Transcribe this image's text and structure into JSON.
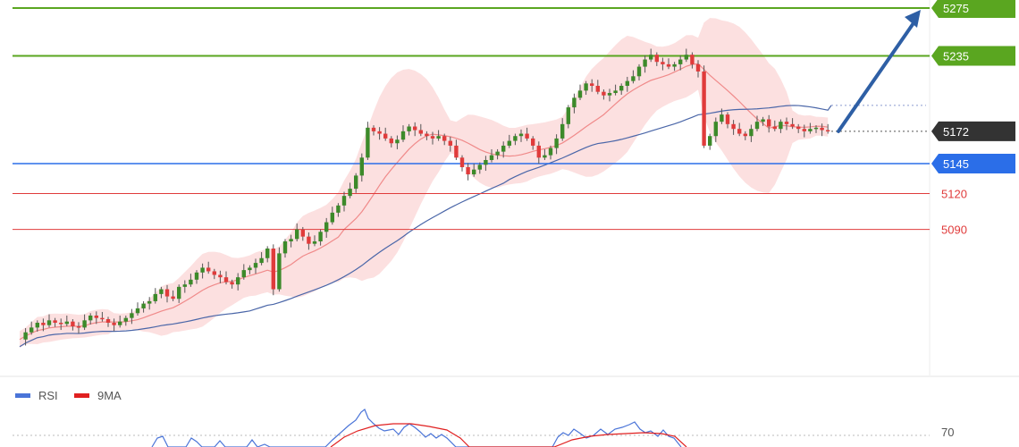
{
  "chart_data": {
    "type": "candlestick",
    "levels": [
      {
        "value": 5275,
        "label": "5275",
        "color": "#5aa620",
        "style": "resistance",
        "tag": "filled"
      },
      {
        "value": 5235,
        "label": "5235",
        "color": "#5aa620",
        "style": "resistance",
        "tag": "filled"
      },
      {
        "value": 5172,
        "label": "5172",
        "color": "#333333",
        "style": "current-price",
        "tag": "filled"
      },
      {
        "value": 5145,
        "label": "5145",
        "color": "#2b6ee8",
        "style": "support",
        "tag": "filled"
      },
      {
        "value": 5120,
        "label": "5120",
        "color": "#e03b3b",
        "style": "support",
        "tag": "text"
      },
      {
        "value": 5090,
        "label": "5090",
        "color": "#e03b3b",
        "style": "support",
        "tag": "text"
      }
    ],
    "forecast_arrow": {
      "from": 5172,
      "to": 5275,
      "color": "#2e5fa5"
    },
    "price_path": [
      4998,
      5004,
      5008,
      5012,
      5010,
      5014,
      5012,
      5011,
      5013,
      5009,
      5008,
      5014,
      5018,
      5016,
      5015,
      5012,
      5010,
      5013,
      5016,
      5020,
      5024,
      5028,
      5030,
      5036,
      5040,
      5034,
      5032,
      5042,
      5044,
      5048,
      5054,
      5058,
      5055,
      5052,
      5050,
      5046,
      5044,
      5050,
      5056,
      5058,
      5062,
      5066,
      5074,
      5040,
      5070,
      5080,
      5082,
      5090,
      5084,
      5078,
      5080,
      5088,
      5096,
      5104,
      5110,
      5118,
      5124,
      5135,
      5150,
      5175,
      5172,
      5170,
      5166,
      5162,
      5165,
      5172,
      5176,
      5173,
      5170,
      5168,
      5166,
      5168,
      5164,
      5160,
      5150,
      5142,
      5136,
      5140,
      5144,
      5148,
      5152,
      5155,
      5160,
      5164,
      5168,
      5170,
      5166,
      5160,
      5150,
      5152,
      5158,
      5166,
      5178,
      5192,
      5200,
      5206,
      5212,
      5210,
      5205,
      5202,
      5204,
      5206,
      5210,
      5214,
      5218,
      5226,
      5232,
      5236,
      5230,
      5228,
      5226,
      5228,
      5232,
      5236,
      5228,
      5222,
      5160,
      5168,
      5180,
      5186,
      5178,
      5174,
      5170,
      5168,
      5174,
      5180,
      5182,
      5176,
      5174,
      5180,
      5178,
      5176,
      5174,
      5172,
      5174,
      5175,
      5173,
      5172
    ],
    "overlays": [
      {
        "name": "bollinger-bands",
        "color": "#f4b8b8"
      },
      {
        "name": "moving-average-fast",
        "color": "#f08a8a"
      },
      {
        "name": "moving-average-slow",
        "color": "#4a66a8"
      }
    ],
    "indicator": {
      "legend": [
        {
          "name": "RSI",
          "color": "#4a74d8"
        },
        {
          "name": "9MA",
          "color": "#e02020"
        }
      ],
      "level_label": "70"
    },
    "colors": {
      "up": "#3c8a2a",
      "down": "#e03b3b",
      "grid": "#e6e6e6"
    }
  }
}
